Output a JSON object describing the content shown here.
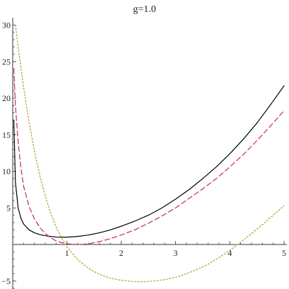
{
  "chart_data": {
    "type": "line",
    "title": "g=1.0",
    "xlabel": "",
    "ylabel": "",
    "xlim": [
      0,
      5.05
    ],
    "ylim": [
      -7,
      31
    ],
    "x_ticks": [
      1,
      2,
      3,
      4,
      5
    ],
    "y_ticks": [
      -5,
      5,
      10,
      15,
      20,
      25,
      30
    ],
    "grid": false,
    "legend": "none",
    "series": [
      {
        "style": "solid",
        "color": "#000000",
        "points": [
          [
            0.02,
            17.0
          ],
          [
            0.05,
            8.5
          ],
          [
            0.1,
            5.0
          ],
          [
            0.15,
            3.6
          ],
          [
            0.2,
            2.8
          ],
          [
            0.3,
            2.0
          ],
          [
            0.4,
            1.6
          ],
          [
            0.5,
            1.35
          ],
          [
            0.6,
            1.2
          ],
          [
            0.7,
            1.1
          ],
          [
            0.8,
            1.02
          ],
          [
            0.9,
            1.0
          ],
          [
            1.0,
            1.0
          ],
          [
            1.2,
            1.1
          ],
          [
            1.4,
            1.3
          ],
          [
            1.6,
            1.6
          ],
          [
            1.8,
            2.0
          ],
          [
            2.0,
            2.5
          ],
          [
            2.25,
            3.2
          ],
          [
            2.5,
            4.0
          ],
          [
            2.75,
            5.0
          ],
          [
            3.0,
            6.2
          ],
          [
            3.25,
            7.5
          ],
          [
            3.5,
            9.0
          ],
          [
            3.75,
            10.6
          ],
          [
            4.0,
            12.4
          ],
          [
            4.25,
            14.4
          ],
          [
            4.5,
            16.6
          ],
          [
            4.75,
            19.1
          ],
          [
            5.0,
            21.7
          ]
        ]
      },
      {
        "style": "dashed",
        "color": "#c02a5a",
        "points": [
          [
            0.02,
            24.0
          ],
          [
            0.05,
            19.0
          ],
          [
            0.1,
            14.0
          ],
          [
            0.15,
            10.5
          ],
          [
            0.2,
            8.0
          ],
          [
            0.3,
            5.2
          ],
          [
            0.4,
            3.5
          ],
          [
            0.5,
            2.3
          ],
          [
            0.6,
            1.5
          ],
          [
            0.7,
            0.9
          ],
          [
            0.8,
            0.5
          ],
          [
            0.9,
            0.25
          ],
          [
            1.0,
            0.1
          ],
          [
            1.1,
            0.03
          ],
          [
            1.2,
            0.0
          ],
          [
            1.3,
            0.03
          ],
          [
            1.4,
            0.1
          ],
          [
            1.6,
            0.4
          ],
          [
            1.8,
            0.8
          ],
          [
            2.0,
            1.3
          ],
          [
            2.25,
            2.0
          ],
          [
            2.5,
            2.9
          ],
          [
            2.75,
            3.9
          ],
          [
            3.0,
            5.0
          ],
          [
            3.25,
            6.3
          ],
          [
            3.5,
            7.6
          ],
          [
            3.75,
            9.0
          ],
          [
            4.0,
            10.6
          ],
          [
            4.25,
            12.3
          ],
          [
            4.5,
            14.2
          ],
          [
            4.75,
            16.2
          ],
          [
            5.0,
            18.3
          ]
        ]
      },
      {
        "style": "dotted",
        "color": "#b5a83a",
        "points": [
          [
            0.05,
            30.0
          ],
          [
            0.1,
            27.0
          ],
          [
            0.2,
            21.5
          ],
          [
            0.3,
            16.8
          ],
          [
            0.4,
            12.8
          ],
          [
            0.5,
            9.4
          ],
          [
            0.6,
            6.6
          ],
          [
            0.7,
            4.3
          ],
          [
            0.8,
            2.4
          ],
          [
            0.9,
            0.9
          ],
          [
            1.0,
            -0.3
          ],
          [
            1.2,
            -2.1
          ],
          [
            1.4,
            -3.3
          ],
          [
            1.6,
            -4.1
          ],
          [
            1.8,
            -4.6
          ],
          [
            2.0,
            -4.9
          ],
          [
            2.2,
            -5.05
          ],
          [
            2.4,
            -5.1
          ],
          [
            2.6,
            -5.0
          ],
          [
            2.8,
            -4.8
          ],
          [
            3.0,
            -4.5
          ],
          [
            3.2,
            -4.0
          ],
          [
            3.4,
            -3.4
          ],
          [
            3.6,
            -2.7
          ],
          [
            3.8,
            -1.8
          ],
          [
            4.0,
            -0.8
          ],
          [
            4.2,
            0.3
          ],
          [
            4.4,
            1.5
          ],
          [
            4.6,
            2.7
          ],
          [
            4.8,
            4.0
          ],
          [
            5.0,
            5.3
          ]
        ]
      }
    ]
  }
}
